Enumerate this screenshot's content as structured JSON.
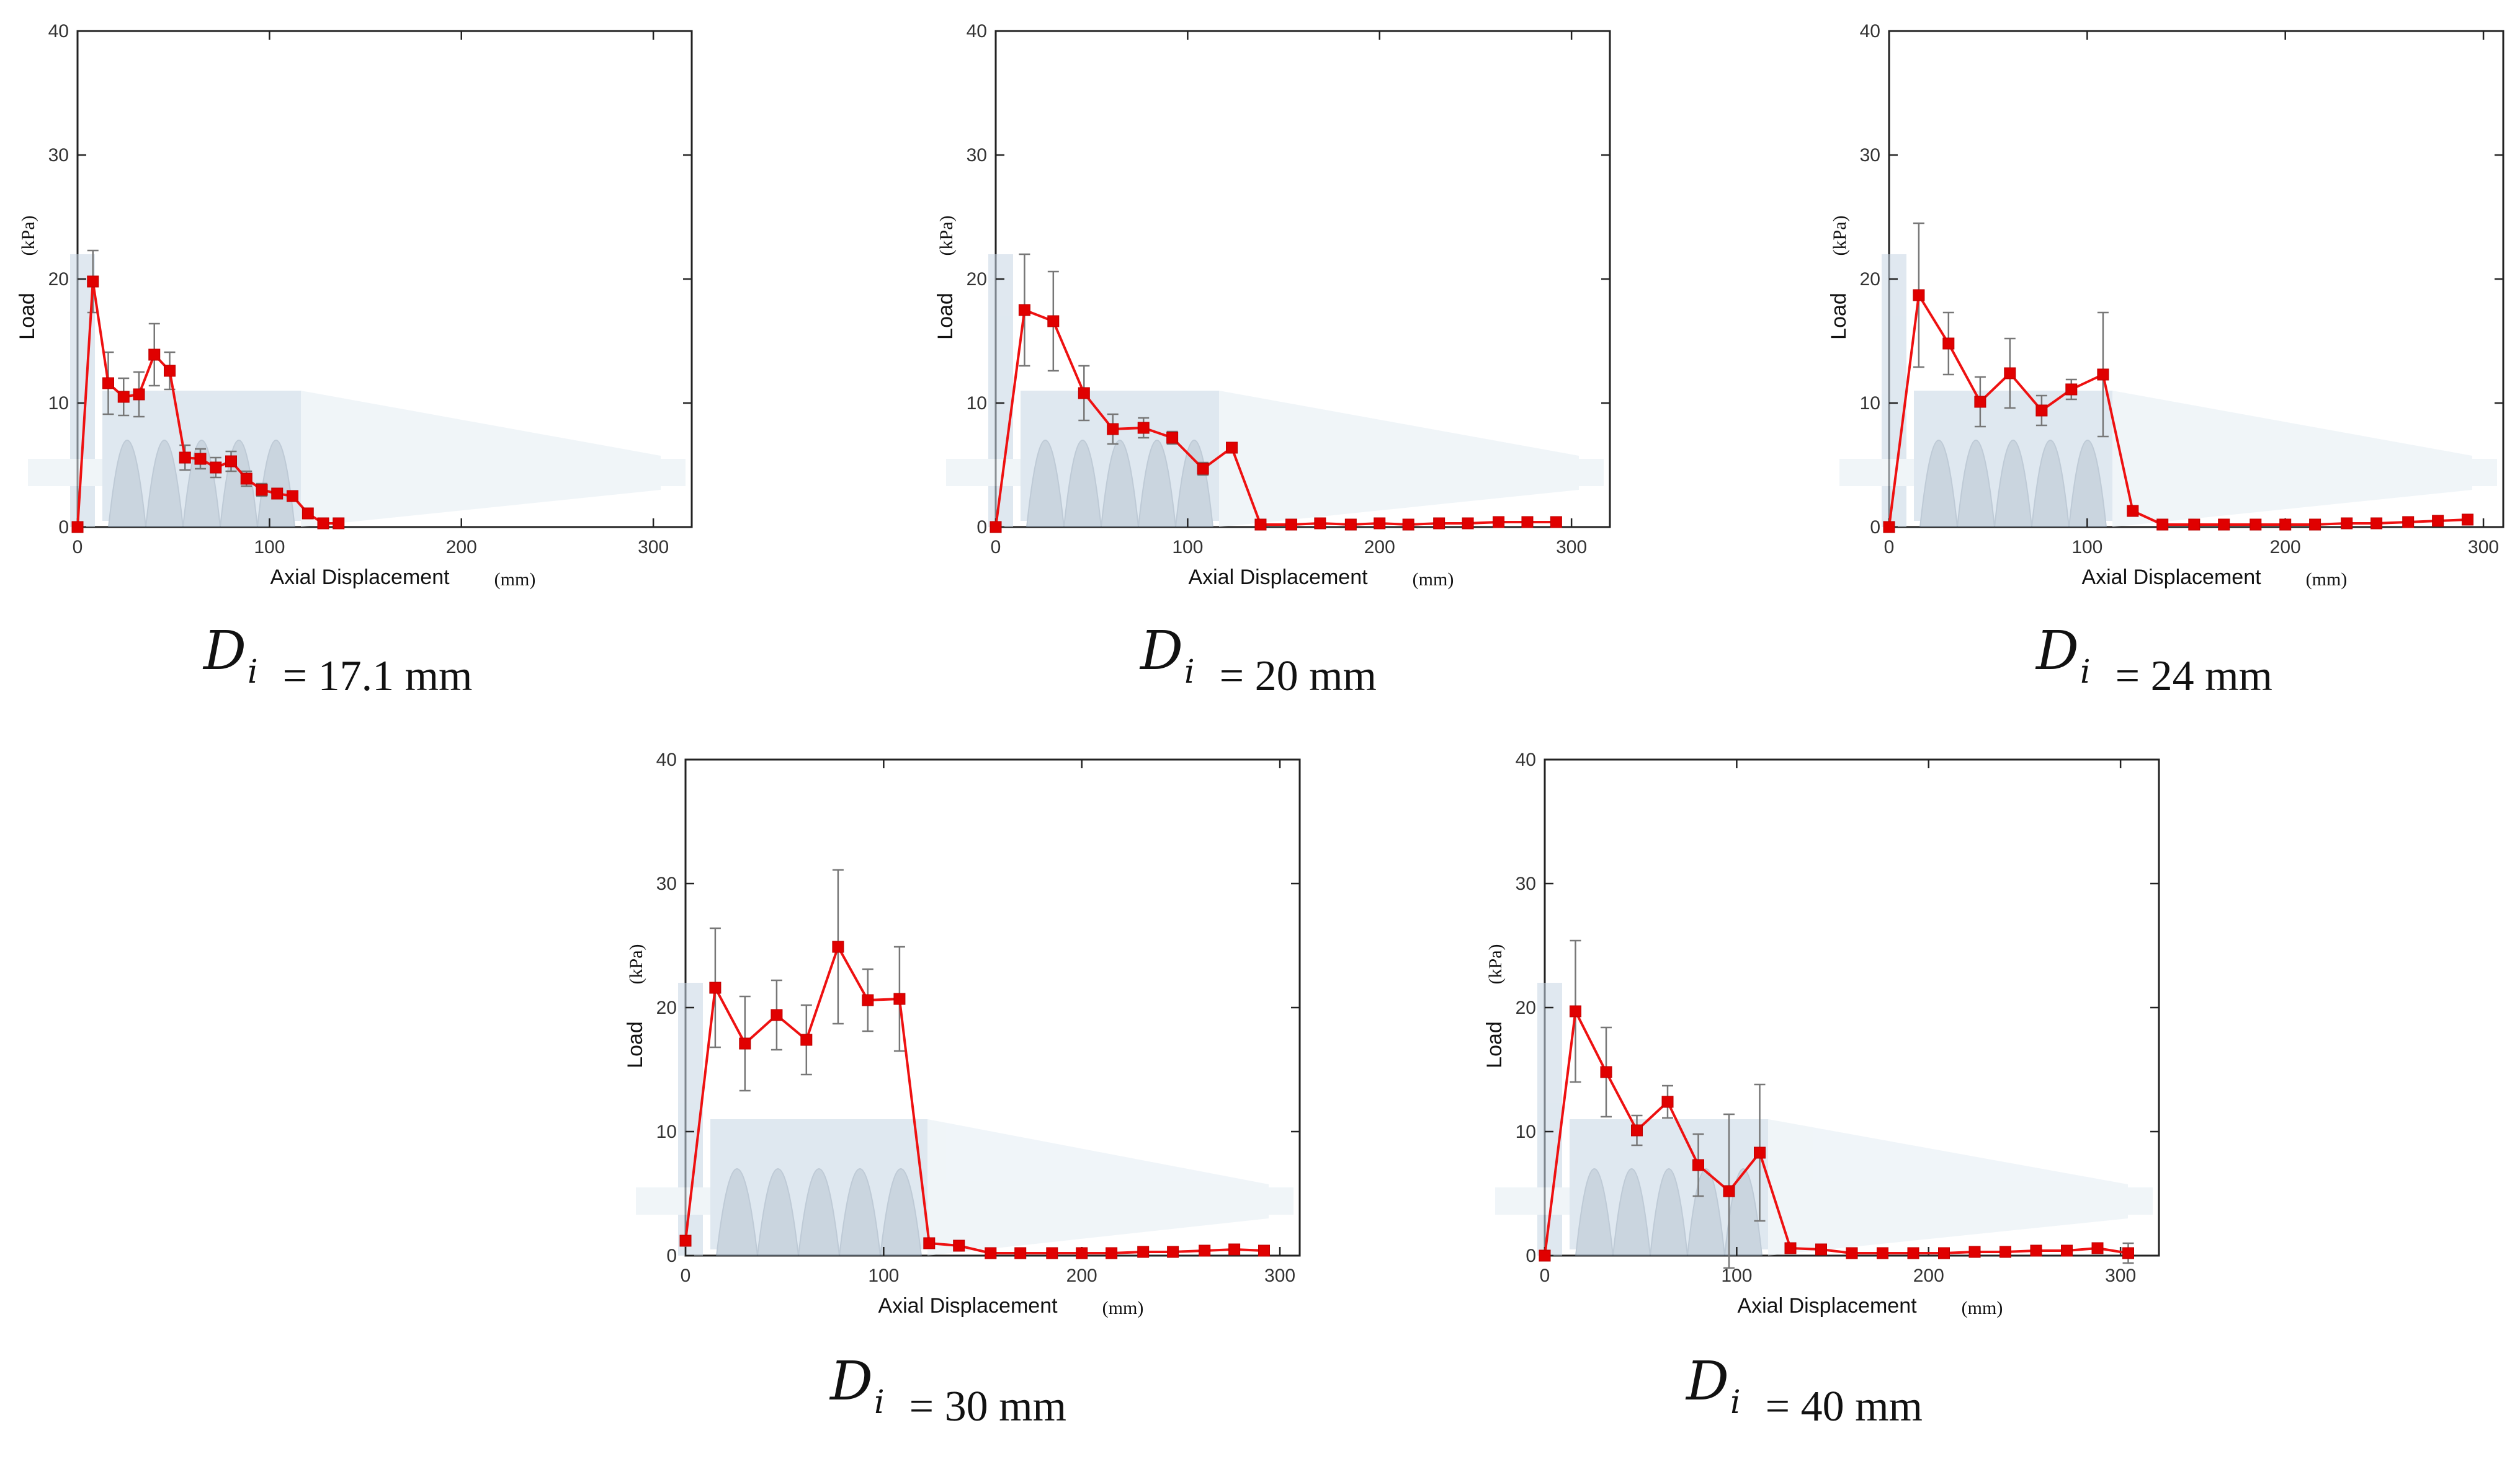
{
  "chart_data": [
    {
      "type": "line",
      "caption": {
        "symbol": "D",
        "subscript": "i",
        "value": "= 17.1 mm"
      },
      "xlabel": "Axial Displacement",
      "xunit": "(mm)",
      "ylabel": "Load",
      "yunit": "(kPa)",
      "xlim": [
        0,
        320
      ],
      "ylim": [
        0,
        40
      ],
      "xticks": [
        0,
        100,
        200,
        300
      ],
      "yticks": [
        0,
        10,
        20,
        30,
        40
      ],
      "series": [
        {
          "name": "Load",
          "x": [
            0,
            8,
            16,
            24,
            32,
            40,
            48,
            56,
            64,
            72,
            80,
            88,
            96,
            104,
            112,
            120,
            128,
            136
          ],
          "y": [
            0,
            19.8,
            11.6,
            10.5,
            10.7,
            13.9,
            12.6,
            5.6,
            5.5,
            4.8,
            5.3,
            3.9,
            3.0,
            2.7,
            2.5,
            1.1,
            0.3,
            0.3
          ],
          "err": [
            0,
            2.5,
            2.5,
            1.5,
            1.8,
            2.5,
            1.5,
            1.0,
            0.8,
            0.8,
            0.8,
            0.6,
            0.5,
            0.4,
            0.4,
            0.3,
            0.2,
            0.2
          ]
        }
      ]
    },
    {
      "type": "line",
      "caption": {
        "symbol": "D",
        "subscript": "i",
        "value": "= 20 mm"
      },
      "xlabel": "Axial Displacement",
      "xunit": "(mm)",
      "ylabel": "Load",
      "yunit": "(kPa)",
      "xlim": [
        0,
        320
      ],
      "ylim": [
        0,
        40
      ],
      "xticks": [
        0,
        100,
        200,
        300
      ],
      "yticks": [
        0,
        10,
        20,
        30,
        40
      ],
      "series": [
        {
          "name": "Load",
          "x": [
            0,
            15,
            30,
            46,
            61,
            77,
            92,
            108,
            123,
            138,
            154,
            169,
            185,
            200,
            215,
            231,
            246,
            262,
            277,
            292
          ],
          "y": [
            0,
            17.5,
            16.6,
            10.8,
            7.9,
            8.0,
            7.2,
            4.7,
            6.4,
            0.2,
            0.2,
            0.3,
            0.2,
            0.3,
            0.2,
            0.3,
            0.3,
            0.4,
            0.4,
            0.4
          ],
          "err": [
            0,
            4.5,
            4.0,
            2.2,
            1.2,
            0.8,
            0.5,
            0.5,
            0.3,
            0.2,
            0.2,
            0.2,
            0.2,
            0.2,
            0.2,
            0.2,
            0.2,
            0.3,
            0.3,
            0.3
          ]
        }
      ]
    },
    {
      "type": "line",
      "caption": {
        "symbol": "D",
        "subscript": "i",
        "value": "= 24 mm"
      },
      "xlabel": "Axial Displacement",
      "xunit": "(mm)",
      "ylabel": "Load",
      "yunit": "(kPa)",
      "xlim": [
        0,
        310
      ],
      "ylim": [
        0,
        40
      ],
      "xticks": [
        0,
        100,
        200,
        300
      ],
      "yticks": [
        0,
        10,
        20,
        30,
        40
      ],
      "series": [
        {
          "name": "Load",
          "x": [
            0,
            15,
            30,
            46,
            61,
            77,
            92,
            108,
            123,
            138,
            154,
            169,
            185,
            200,
            215,
            231,
            246,
            262,
            277,
            292
          ],
          "y": [
            0,
            18.7,
            14.8,
            10.1,
            12.4,
            9.4,
            11.1,
            12.3,
            1.3,
            0.2,
            0.2,
            0.2,
            0.2,
            0.2,
            0.2,
            0.3,
            0.3,
            0.4,
            0.5,
            0.6
          ],
          "err": [
            0,
            5.8,
            2.5,
            2.0,
            2.8,
            1.2,
            0.8,
            5.0,
            0.4,
            0.2,
            0.2,
            0.2,
            0.2,
            0.2,
            0.2,
            0.2,
            0.2,
            0.3,
            0.3,
            0.4
          ]
        }
      ]
    },
    {
      "type": "line",
      "caption": {
        "symbol": "D",
        "subscript": "i",
        "value": "= 30 mm"
      },
      "xlabel": "Axial Displacement",
      "xunit": "(mm)",
      "ylabel": "Load",
      "yunit": "(kPa)",
      "xlim": [
        0,
        310
      ],
      "ylim": [
        0,
        40
      ],
      "xticks": [
        0,
        100,
        200,
        300
      ],
      "yticks": [
        0,
        10,
        20,
        30,
        40
      ],
      "series": [
        {
          "name": "Load",
          "x": [
            0,
            15,
            30,
            46,
            61,
            77,
            92,
            108,
            123,
            138,
            154,
            169,
            185,
            200,
            215,
            231,
            246,
            262,
            277,
            292
          ],
          "y": [
            1.2,
            21.6,
            17.1,
            19.4,
            17.4,
            24.9,
            20.6,
            20.7,
            1.0,
            0.8,
            0.2,
            0.2,
            0.2,
            0.2,
            0.2,
            0.3,
            0.3,
            0.4,
            0.5,
            0.4
          ],
          "err": [
            0.3,
            4.8,
            3.8,
            2.8,
            2.8,
            6.2,
            2.5,
            4.2,
            0.3,
            0.3,
            0.2,
            0.2,
            0.2,
            0.2,
            0.2,
            0.2,
            0.2,
            0.3,
            0.3,
            0.3
          ]
        }
      ]
    },
    {
      "type": "line",
      "caption": {
        "symbol": "D",
        "subscript": "i",
        "value": "= 40 mm"
      },
      "xlabel": "Axial Displacement",
      "xunit": "(mm)",
      "ylabel": "Load",
      "yunit": "(kPa)",
      "xlim": [
        0,
        320
      ],
      "ylim": [
        0,
        40
      ],
      "xticks": [
        0,
        100,
        200,
        300
      ],
      "yticks": [
        0,
        10,
        20,
        30,
        40
      ],
      "series": [
        {
          "name": "Load",
          "x": [
            0,
            16,
            32,
            48,
            64,
            80,
            96,
            112,
            128,
            144,
            160,
            176,
            192,
            208,
            224,
            240,
            256,
            272,
            288,
            304
          ],
          "y": [
            0,
            19.7,
            14.8,
            10.1,
            12.4,
            7.3,
            5.2,
            8.3,
            0.6,
            0.5,
            0.2,
            0.2,
            0.2,
            0.2,
            0.3,
            0.3,
            0.4,
            0.4,
            0.6,
            0.2
          ],
          "err": [
            0,
            5.7,
            3.6,
            1.2,
            1.3,
            2.5,
            6.2,
            5.5,
            0.3,
            0.3,
            0.2,
            0.2,
            0.2,
            0.2,
            0.2,
            0.2,
            0.3,
            0.3,
            0.4,
            0.8
          ]
        }
      ]
    }
  ]
}
